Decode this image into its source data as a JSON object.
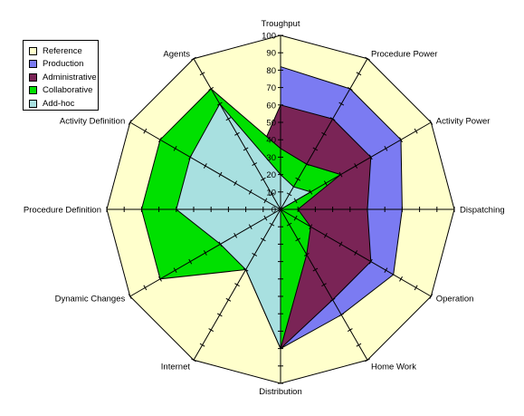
{
  "chart_data": {
    "type": "radar",
    "axes": [
      "Troughput",
      "Procedure Power",
      "Activity Power",
      "Dispatching",
      "Operation",
      "Home Work",
      "Distribution",
      "Internet",
      "Dynamic Changes",
      "Procedure Definition",
      "Activity Definition",
      "Agents"
    ],
    "rlim": [
      0,
      100
    ],
    "ticks": [
      0,
      10,
      20,
      30,
      40,
      50,
      60,
      70,
      80,
      90,
      100
    ],
    "grid": false,
    "legend_position": "top-left",
    "series": [
      {
        "name": "Reference",
        "color": "#FFFFCC",
        "values": [
          100,
          100,
          100,
          100,
          100,
          100,
          100,
          100,
          100,
          100,
          100,
          100
        ]
      },
      {
        "name": "Production",
        "color": "#7B7BF2",
        "values": [
          82,
          80,
          80,
          70,
          75,
          70,
          80,
          0,
          0,
          0,
          0,
          0
        ]
      },
      {
        "name": "Administrative",
        "color": "#7A2456",
        "values": [
          60,
          60,
          60,
          50,
          60,
          60,
          80,
          0,
          0,
          0,
          0,
          30
        ]
      },
      {
        "name": "Collaborative",
        "color": "#00E000",
        "values": [
          35,
          30,
          40,
          10,
          20,
          30,
          80,
          40,
          80,
          80,
          80,
          80
        ]
      },
      {
        "name": "Add-hoc",
        "color": "#A8E0E0",
        "values": [
          20,
          15,
          20,
          0,
          0,
          0,
          80,
          40,
          40,
          60,
          60,
          70
        ]
      }
    ]
  }
}
